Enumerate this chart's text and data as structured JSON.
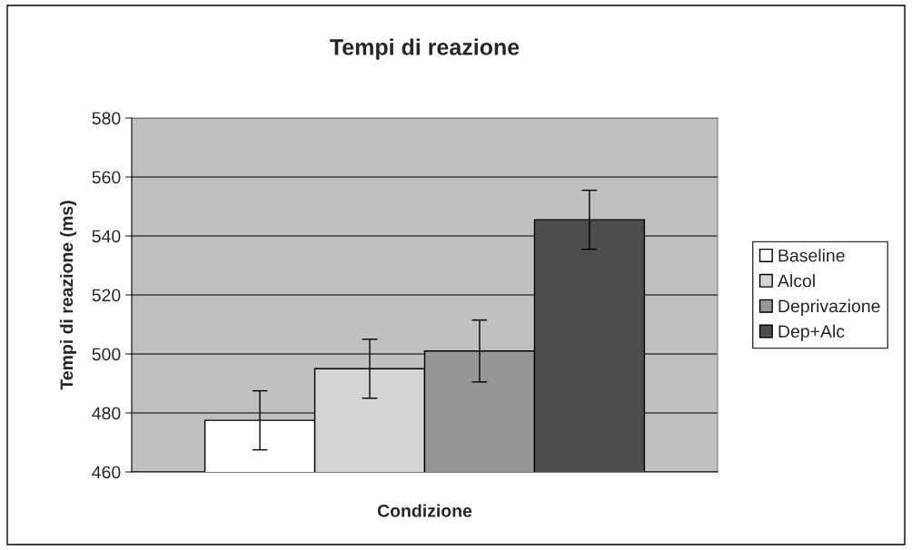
{
  "chart_data": {
    "type": "bar",
    "title": "Tempi di reazione",
    "xlabel": "Condizione",
    "ylabel": "Tempi di reazione (ms)",
    "categories": [
      null
    ],
    "series": [
      {
        "name": "Baseline",
        "color": "#ffffff",
        "values": [
          477.5
        ],
        "errors": [
          10
        ]
      },
      {
        "name": "Alcol",
        "color": "#d4d4d4",
        "values": [
          495
        ],
        "errors": [
          10
        ]
      },
      {
        "name": "Deprivazione",
        "color": "#969696",
        "values": [
          501
        ],
        "errors": [
          10.5
        ]
      },
      {
        "name": "Dep+Alc",
        "color": "#4d4d4d",
        "values": [
          545.5
        ],
        "errors": [
          10
        ]
      }
    ],
    "ylim": [
      460,
      580
    ],
    "yticks": [
      460,
      480,
      500,
      520,
      540,
      560,
      580
    ],
    "grid": "y",
    "legend": "right"
  }
}
